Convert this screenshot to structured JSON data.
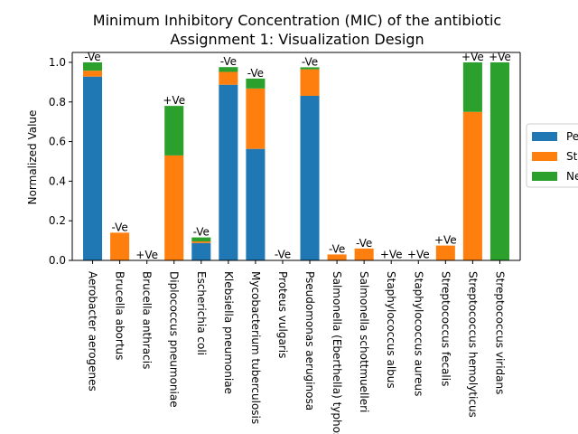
{
  "chart_data": {
    "type": "bar",
    "stacked": true,
    "title_line1": "Minimum Inhibitory Concentration (MIC) of the antibiotic",
    "title_line2": "Assignment 1: Visualization Design",
    "xlabel": "",
    "ylabel": "Normalized Value",
    "ylim": [
      0,
      1.05
    ],
    "yticks": [
      "0.0",
      "0.2",
      "0.4",
      "0.6",
      "0.8",
      "1.0"
    ],
    "grid": false,
    "legend_position": "right, partially clipped",
    "categories": [
      "Aerobacter aerogenes",
      "Brucella abortus",
      "Brucella anthracis",
      "Diplococcus pneumoniae",
      "Escherichia coli",
      "Klebsiella pneumoniae",
      "Mycobacterium tuberculosis",
      "Proteus vulgaris",
      "Pseudomonas aeruginosa",
      "Salmonella (Eberthella) typhosa",
      "Salmonella schottmuelleri",
      "Staphylococcus albus",
      "Staphylococcus aureus",
      "Streptococcus fecalis",
      "Streptococcus hemolyticus",
      "Streptococcus viridans"
    ],
    "bar_labels": [
      "-Ve",
      "-Ve",
      "+Ve",
      "+Ve",
      "-Ve",
      "-Ve",
      "-Ve",
      "-Ve",
      "-Ve",
      "-Ve",
      "-Ve",
      "+Ve",
      "+Ve",
      "+Ve",
      "+Ve",
      "+Ve"
    ],
    "series": [
      {
        "name": "Pe",
        "color": "#1f77b4",
        "values": [
          0.928,
          0.0,
          0.0,
          0.0,
          0.088,
          0.887,
          0.563,
          0.0,
          0.831,
          0.0,
          0.0,
          0.0,
          0.0,
          0.0,
          0.0,
          0.0
        ]
      },
      {
        "name": "St",
        "color": "#ff7f0e",
        "values": [
          0.03,
          0.14,
          0.0,
          0.53,
          0.008,
          0.065,
          0.305,
          0.002,
          0.134,
          0.03,
          0.06,
          0.002,
          0.002,
          0.075,
          0.75,
          0.0
        ]
      },
      {
        "name": "Ne",
        "color": "#2ca02c",
        "values": [
          0.042,
          0.0,
          0.0,
          0.25,
          0.02,
          0.024,
          0.05,
          0.0,
          0.01,
          0.0,
          0.0,
          0.0,
          0.0,
          0.0,
          0.25,
          1.0
        ]
      }
    ]
  }
}
